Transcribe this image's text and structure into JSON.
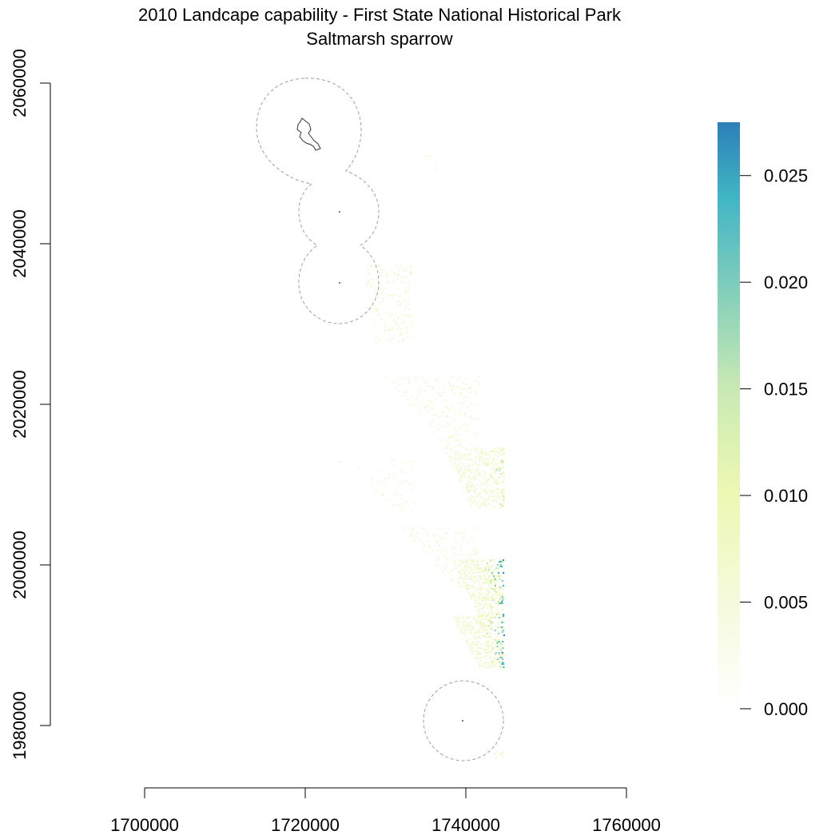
{
  "map": {
    "title": "2010 Landcape capability - First State National Historical Park",
    "subtitle": "Saltmarsh sparrow",
    "x_axis": {
      "ticks": [
        1700000,
        1720000,
        1740000,
        1760000
      ],
      "tick_labels": [
        "1700000",
        "1720000",
        "1740000",
        "1760000"
      ],
      "range": [
        1700000,
        1760000
      ]
    },
    "y_axis": {
      "ticks": [
        1980000,
        2000000,
        2020000,
        2040000,
        2060000
      ],
      "tick_labels": [
        "1980000",
        "2000000",
        "2020000",
        "2040000",
        "2060000"
      ],
      "range": [
        1980000,
        2060000
      ]
    },
    "legend": {
      "placement": "right",
      "ticks": [
        0.0,
        0.005,
        0.01,
        0.015,
        0.02,
        0.025
      ],
      "tick_labels": [
        "0.000",
        "0.005",
        "0.010",
        "0.015",
        "0.020",
        "0.025"
      ],
      "range": [
        0.0,
        0.0275
      ],
      "colors": [
        "#ffffff",
        "#f4fad8",
        "#edf8b1",
        "#c7e9b4",
        "#7fcdbb",
        "#41b6c4",
        "#2c7fb8"
      ]
    },
    "buffers": [
      {
        "type": "park-unit-buffer",
        "cx": 1720000,
        "cy": 2053000
      },
      {
        "type": "point-buffer",
        "cx": 1724300,
        "cy": 2043800
      },
      {
        "type": "point-buffer",
        "cx": 1724300,
        "cy": 2035000
      },
      {
        "type": "point-buffer",
        "cx": 1739600,
        "cy": 1980500
      }
    ]
  }
}
